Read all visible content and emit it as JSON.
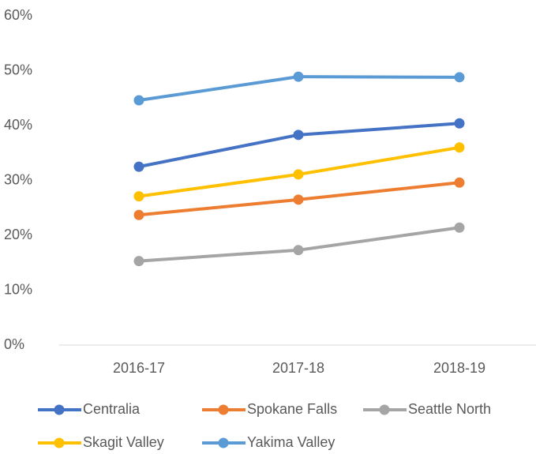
{
  "chart_data": {
    "type": "line",
    "categories": [
      "2016-17",
      "2017-18",
      "2018-19"
    ],
    "series": [
      {
        "name": "Centralia",
        "color": "#4472c4",
        "values": [
          32.5,
          38.3,
          40.4
        ]
      },
      {
        "name": "Spokane Falls",
        "color": "#ed7d31",
        "values": [
          23.7,
          26.5,
          29.6
        ]
      },
      {
        "name": "Seattle North",
        "color": "#a5a5a5",
        "values": [
          15.3,
          17.3,
          21.4
        ]
      },
      {
        "name": "Skagit Valley",
        "color": "#ffc000",
        "values": [
          27.1,
          31.1,
          36.0
        ]
      },
      {
        "name": "Yakima Valley",
        "color": "#5b9bd5",
        "values": [
          44.6,
          48.9,
          48.8
        ]
      }
    ],
    "ylim": [
      0,
      60
    ],
    "yticks": [
      {
        "value": 0,
        "label": "0%"
      },
      {
        "value": 10,
        "label": "10%"
      },
      {
        "value": 20,
        "label": "20%"
      },
      {
        "value": 30,
        "label": "30%"
      },
      {
        "value": 40,
        "label": "40%"
      },
      {
        "value": 50,
        "label": "50%"
      },
      {
        "value": 60,
        "label": "60%"
      }
    ],
    "grid": false,
    "legend": "bottom"
  }
}
